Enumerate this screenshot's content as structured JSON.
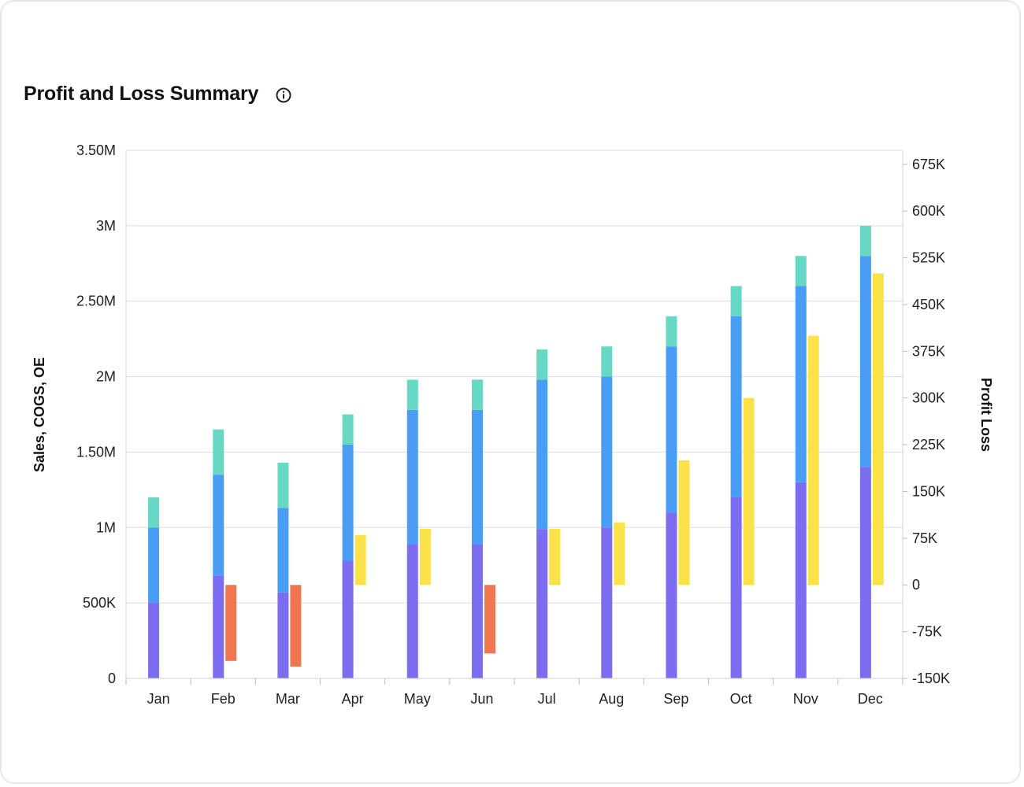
{
  "card": {
    "title": "Profit and Loss Summary",
    "info_icon": "info-circle-icon"
  },
  "chart_data": {
    "type": "bar",
    "stacked": true,
    "categories": [
      "Jan",
      "Feb",
      "Mar",
      "Apr",
      "May",
      "Jun",
      "Jul",
      "Aug",
      "Sep",
      "Oct",
      "Nov",
      "Dec"
    ],
    "y_left": {
      "label": "Sales, COGS, OE",
      "ylim": [
        0,
        3500000
      ],
      "ticks": [
        0,
        500000,
        1000000,
        1500000,
        2000000,
        2500000,
        3000000,
        3500000
      ],
      "tick_labels": [
        "0",
        "500K",
        "1M",
        "1.50M",
        "2M",
        "2.50M",
        "3M",
        "3.50M"
      ]
    },
    "y_right": {
      "label": "Profit Loss",
      "ylim": [
        -150000,
        697500
      ],
      "ticks": [
        -150000,
        -75000,
        0,
        75000,
        150000,
        225000,
        300000,
        375000,
        450000,
        525000,
        600000,
        675000
      ],
      "tick_labels": [
        "-150K",
        "-75K",
        "0",
        "75K",
        "150K",
        "225K",
        "300K",
        "375K",
        "450K",
        "525K",
        "600K",
        "675K"
      ]
    },
    "stack_series": [
      {
        "name": "",
        "color": "#7b6cf0",
        "values": [
          500000,
          680000,
          570000,
          780000,
          890000,
          890000,
          990000,
          1000000,
          1100000,
          1200000,
          1300000,
          1400000
        ]
      },
      {
        "name": "",
        "color": "#4a9df5",
        "values": [
          500000,
          670000,
          560000,
          770000,
          890000,
          890000,
          990000,
          1000000,
          1100000,
          1200000,
          1300000,
          1400000
        ]
      },
      {
        "name": "",
        "color": "#66d8c3",
        "values": [
          200000,
          300000,
          300000,
          200000,
          200000,
          200000,
          200000,
          200000,
          200000,
          200000,
          200000,
          200000
        ]
      }
    ],
    "profit_series": {
      "name": "",
      "positive_color": "#fce249",
      "negative_color": "#f0764f",
      "values": [
        0,
        -122000,
        -131000,
        80000,
        90000,
        -110000,
        90000,
        100000,
        200000,
        300000,
        400000,
        500000
      ]
    },
    "grid": true,
    "legend": "none"
  }
}
